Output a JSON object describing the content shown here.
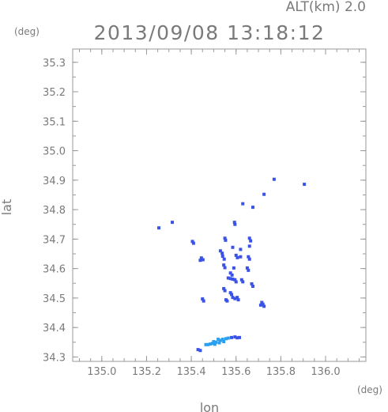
{
  "header": {
    "altitude": "ALT(km) 2.0",
    "timestamp": "2013/09/08 13:18:12"
  },
  "chart_data": {
    "type": "scatter",
    "title": "2013/09/08 13:18:12",
    "xlabel": "lon",
    "ylabel": "lat",
    "x_unit": "(deg)",
    "y_unit": "(deg)",
    "xlim": [
      134.87,
      136.18
    ],
    "ylim": [
      34.285,
      35.345
    ],
    "x_ticks": [
      {
        "value": 135.0,
        "label": "135.0"
      },
      {
        "value": 135.2,
        "label": "135.2"
      },
      {
        "value": 135.4,
        "label": "135.4"
      },
      {
        "value": 135.6,
        "label": "135.6"
      },
      {
        "value": 135.8,
        "label": "135.8"
      },
      {
        "value": 136.0,
        "label": "136.0"
      }
    ],
    "y_ticks": [
      {
        "value": 34.3,
        "label": "34.3"
      },
      {
        "value": 34.4,
        "label": "34.4"
      },
      {
        "value": 34.5,
        "label": "34.5"
      },
      {
        "value": 34.6,
        "label": "34.6"
      },
      {
        "value": 34.7,
        "label": "34.7"
      },
      {
        "value": 34.8,
        "label": "34.8"
      },
      {
        "value": 34.9,
        "label": "34.9"
      },
      {
        "value": 35.0,
        "label": "35.0"
      },
      {
        "value": 35.1,
        "label": "35.1"
      },
      {
        "value": 35.2,
        "label": "35.2"
      },
      {
        "value": 35.3,
        "label": "35.3"
      }
    ],
    "grid": false,
    "colors": {
      "echo_blue": "#3a52e6",
      "echo_light": "#2aa0ee",
      "axis": "#9a9a9a"
    },
    "points": [
      {
        "x": 135.77,
        "y": 34.903,
        "c": "b"
      },
      {
        "x": 135.905,
        "y": 34.886,
        "c": "b"
      },
      {
        "x": 135.725,
        "y": 34.852,
        "c": "b"
      },
      {
        "x": 135.63,
        "y": 34.82,
        "c": "b"
      },
      {
        "x": 135.675,
        "y": 34.808,
        "c": "b"
      },
      {
        "x": 135.315,
        "y": 34.757,
        "c": "b"
      },
      {
        "x": 135.255,
        "y": 34.738,
        "c": "b"
      },
      {
        "x": 135.593,
        "y": 34.757,
        "c": "b"
      },
      {
        "x": 135.595,
        "y": 34.75,
        "c": "b"
      },
      {
        "x": 135.405,
        "y": 34.692,
        "c": "b"
      },
      {
        "x": 135.41,
        "y": 34.686,
        "c": "b"
      },
      {
        "x": 135.55,
        "y": 34.703,
        "c": "b"
      },
      {
        "x": 135.553,
        "y": 34.696,
        "c": "b"
      },
      {
        "x": 135.66,
        "y": 34.703,
        "c": "b"
      },
      {
        "x": 135.665,
        "y": 34.694,
        "c": "b"
      },
      {
        "x": 135.66,
        "y": 34.676,
        "c": "b"
      },
      {
        "x": 135.585,
        "y": 34.672,
        "c": "b"
      },
      {
        "x": 135.62,
        "y": 34.665,
        "c": "b"
      },
      {
        "x": 135.53,
        "y": 34.66,
        "c": "b"
      },
      {
        "x": 135.538,
        "y": 34.652,
        "c": "b"
      },
      {
        "x": 135.54,
        "y": 34.642,
        "c": "b"
      },
      {
        "x": 135.547,
        "y": 34.632,
        "c": "b"
      },
      {
        "x": 135.6,
        "y": 34.645,
        "c": "b"
      },
      {
        "x": 135.606,
        "y": 34.637,
        "c": "b"
      },
      {
        "x": 135.62,
        "y": 34.64,
        "c": "b"
      },
      {
        "x": 135.445,
        "y": 34.636,
        "c": "b"
      },
      {
        "x": 135.452,
        "y": 34.63,
        "c": "b"
      },
      {
        "x": 135.44,
        "y": 34.628,
        "c": "b"
      },
      {
        "x": 135.655,
        "y": 34.64,
        "c": "b"
      },
      {
        "x": 135.66,
        "y": 34.632,
        "c": "b"
      },
      {
        "x": 135.545,
        "y": 34.612,
        "c": "b"
      },
      {
        "x": 135.55,
        "y": 34.603,
        "c": "b"
      },
      {
        "x": 135.59,
        "y": 34.602,
        "c": "b"
      },
      {
        "x": 135.65,
        "y": 34.602,
        "c": "b"
      },
      {
        "x": 135.655,
        "y": 34.594,
        "c": "b"
      },
      {
        "x": 135.575,
        "y": 34.585,
        "c": "b"
      },
      {
        "x": 135.582,
        "y": 34.578,
        "c": "b"
      },
      {
        "x": 135.565,
        "y": 34.568,
        "c": "b"
      },
      {
        "x": 135.575,
        "y": 34.566,
        "c": "b"
      },
      {
        "x": 135.585,
        "y": 34.564,
        "c": "b"
      },
      {
        "x": 135.595,
        "y": 34.562,
        "c": "b"
      },
      {
        "x": 135.6,
        "y": 34.555,
        "c": "b"
      },
      {
        "x": 135.625,
        "y": 34.562,
        "c": "b"
      },
      {
        "x": 135.63,
        "y": 34.555,
        "c": "b"
      },
      {
        "x": 135.67,
        "y": 34.548,
        "c": "b"
      },
      {
        "x": 135.675,
        "y": 34.54,
        "c": "b"
      },
      {
        "x": 135.545,
        "y": 34.532,
        "c": "b"
      },
      {
        "x": 135.55,
        "y": 34.525,
        "c": "b"
      },
      {
        "x": 135.575,
        "y": 34.518,
        "c": "b"
      },
      {
        "x": 135.58,
        "y": 34.512,
        "c": "b"
      },
      {
        "x": 135.585,
        "y": 34.502,
        "c": "b"
      },
      {
        "x": 135.595,
        "y": 34.498,
        "c": "b"
      },
      {
        "x": 135.605,
        "y": 34.502,
        "c": "b"
      },
      {
        "x": 135.61,
        "y": 34.494,
        "c": "b"
      },
      {
        "x": 135.555,
        "y": 34.494,
        "c": "b"
      },
      {
        "x": 135.56,
        "y": 34.49,
        "c": "b"
      },
      {
        "x": 135.45,
        "y": 34.497,
        "c": "b"
      },
      {
        "x": 135.455,
        "y": 34.49,
        "c": "b"
      },
      {
        "x": 135.715,
        "y": 34.485,
        "c": "b"
      },
      {
        "x": 135.72,
        "y": 34.479,
        "c": "b"
      },
      {
        "x": 135.71,
        "y": 34.476,
        "c": "b"
      },
      {
        "x": 135.725,
        "y": 34.472,
        "c": "b"
      },
      {
        "x": 135.595,
        "y": 34.368,
        "c": "b"
      },
      {
        "x": 135.605,
        "y": 34.365,
        "c": "b"
      },
      {
        "x": 135.615,
        "y": 34.366,
        "c": "b"
      },
      {
        "x": 135.58,
        "y": 34.366,
        "c": "b"
      },
      {
        "x": 135.565,
        "y": 34.364,
        "c": "l"
      },
      {
        "x": 135.54,
        "y": 34.36,
        "c": "l"
      },
      {
        "x": 135.545,
        "y": 34.352,
        "c": "l"
      },
      {
        "x": 135.53,
        "y": 34.356,
        "c": "l"
      },
      {
        "x": 135.525,
        "y": 34.348,
        "c": "l"
      },
      {
        "x": 135.51,
        "y": 34.35,
        "c": "l"
      },
      {
        "x": 135.505,
        "y": 34.343,
        "c": "l"
      },
      {
        "x": 135.495,
        "y": 34.346,
        "c": "l"
      },
      {
        "x": 135.485,
        "y": 34.344,
        "c": "l"
      },
      {
        "x": 135.475,
        "y": 34.342,
        "c": "l"
      },
      {
        "x": 135.465,
        "y": 34.342,
        "c": "l"
      },
      {
        "x": 135.52,
        "y": 34.36,
        "c": "l"
      },
      {
        "x": 135.555,
        "y": 34.362,
        "c": "l"
      },
      {
        "x": 135.5,
        "y": 34.352,
        "c": "l"
      },
      {
        "x": 135.43,
        "y": 34.325,
        "c": "b"
      },
      {
        "x": 135.44,
        "y": 34.322,
        "c": "b"
      }
    ]
  }
}
